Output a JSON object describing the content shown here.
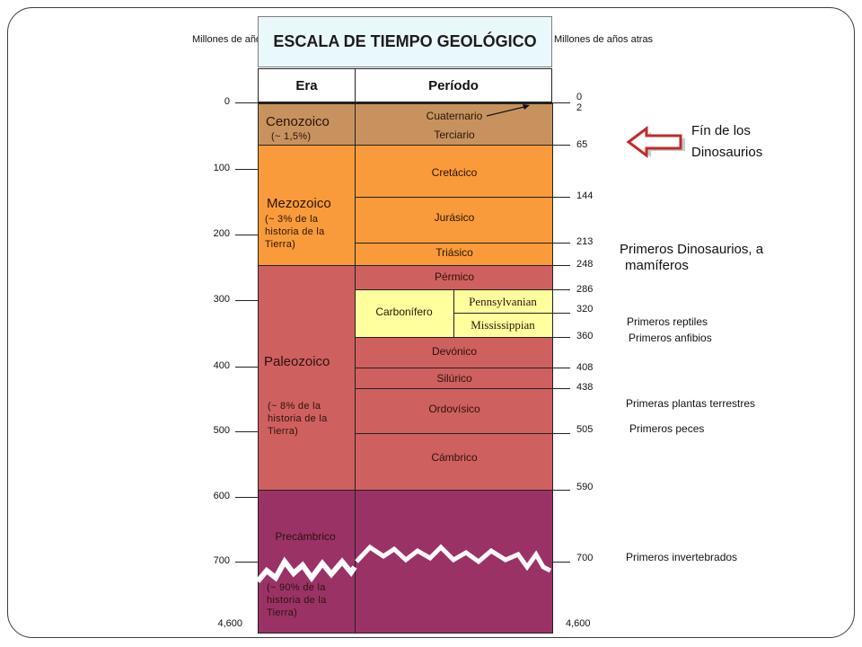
{
  "header": {
    "left_axis_label": "Millones de años atras",
    "right_axis_label": "Millones de años atras",
    "title": "ESCALA DE TIEMPO GEOLÓGICO",
    "col_era": "Era",
    "col_period": "Período"
  },
  "left_ticks": [
    "0",
    "100",
    "200",
    "300",
    "400",
    "500",
    "600",
    "700",
    "4,600"
  ],
  "eras": [
    {
      "name": "Cenozoico",
      "note": "(~ 1,5%)",
      "color": "#c8925e"
    },
    {
      "name": "Mezozoico",
      "note": "(~ 3% de la historia de la Tierra)",
      "color": "#f99b3a"
    },
    {
      "name": "Paleozoico",
      "note": "(~ 8% de la historia de la Tierra)",
      "color": "#cf6060"
    },
    {
      "name": "Precámbrico",
      "note": "(~ 90% de la historia de la Tierra)",
      "color": "#9b3266"
    }
  ],
  "periods": {
    "cuaternario": "Cuaternario",
    "terciario": "Terciario",
    "cretacico": "Cretácico",
    "jurasico": "Jurásico",
    "triasico": "Triásico",
    "permico": "Pérmico",
    "carbonifero": "Carbonífero",
    "pennsylvanian": "Pennsylvanian",
    "mississippian": "Mississippian",
    "devonico": "Devónico",
    "silurico": "Silúrico",
    "ordovisico": "Ordovísico",
    "cambrico": "Cámbrico",
    "precambrico": "Precámbrico"
  },
  "right_ticks": [
    "0",
    "2",
    "65",
    "144",
    "213",
    "248",
    "286",
    "320",
    "360",
    "408",
    "438",
    "505",
    "590",
    "700",
    "4,600"
  ],
  "events": {
    "fin_dinosaurios_1": "Fín de los",
    "fin_dinosaurios_2": "Dinosaurios",
    "primeros_dinosaurios_1": "Primeros Dinosaurios, a",
    "primeros_dinosaurios_2": "mamíferos",
    "primeros_reptiles": "Primeros reptiles",
    "primeros_anfibios": "Primeros anfibios",
    "primeras_plantas": "Primeras plantas terrestres",
    "primeros_peces": "Primeros peces",
    "primeros_invertebrados": "Primeros invertebrados"
  },
  "colors": {
    "cenozoic": "#c8925e",
    "mesozoic": "#f99b3a",
    "paleozoic": "#cf6060",
    "precambrian": "#9b3266",
    "carboniferous": "#ffff9e",
    "title_bg": "#e9f8fb",
    "arrow": "#c02b2b"
  }
}
